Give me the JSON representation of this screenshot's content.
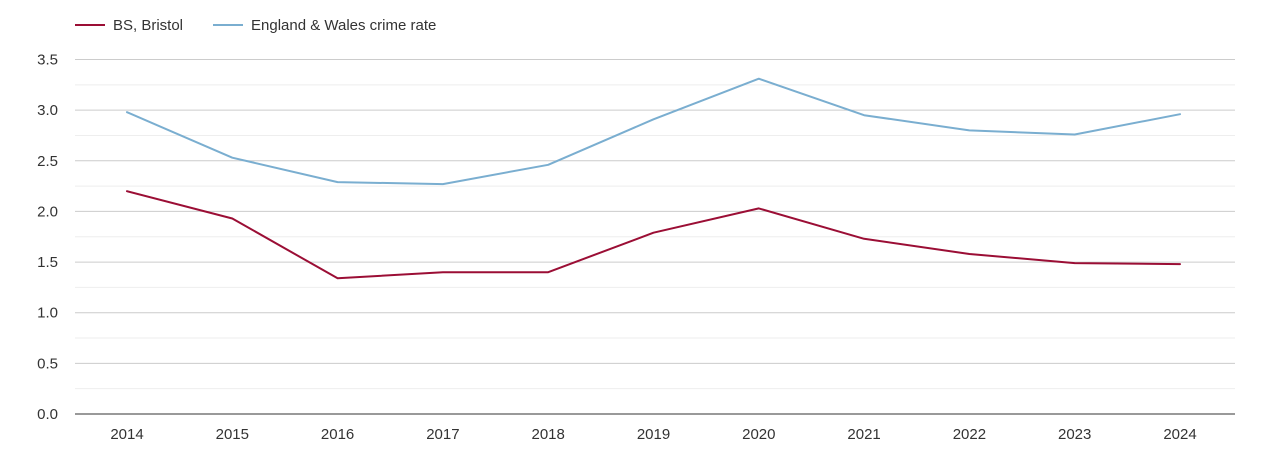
{
  "chart_data": {
    "type": "line",
    "title": "",
    "xlabel": "",
    "ylabel": "",
    "categories": [
      "2014",
      "2015",
      "2016",
      "2017",
      "2018",
      "2019",
      "2020",
      "2021",
      "2022",
      "2023",
      "2024"
    ],
    "ylim": [
      0,
      3.5
    ],
    "yticks": [
      "0.0",
      "0.5",
      "1.0",
      "1.5",
      "2.0",
      "2.5",
      "3.0",
      "3.5"
    ],
    "grid": true,
    "legend_position": "top-left",
    "series": [
      {
        "name": "BS, Bristol",
        "color": "#9b0e35",
        "values": [
          2.2,
          1.93,
          1.34,
          1.4,
          1.4,
          1.79,
          2.03,
          1.73,
          1.58,
          1.49,
          1.48
        ]
      },
      {
        "name": "England & Wales crime rate",
        "color": "#7aaed0",
        "values": [
          2.98,
          2.53,
          2.29,
          2.27,
          2.46,
          2.91,
          3.31,
          2.95,
          2.8,
          2.76,
          2.96
        ]
      }
    ]
  }
}
